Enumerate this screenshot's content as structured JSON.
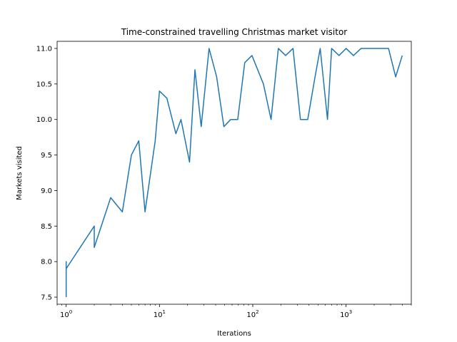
{
  "chart_data": {
    "type": "line",
    "title": "Time-constrained travelling Christmas market visitor",
    "xlabel": "Iterations",
    "ylabel": "Markets visited",
    "xscale": "log",
    "xlim": [
      0.8,
      5000
    ],
    "ylim": [
      7.4,
      11.1
    ],
    "grid": false,
    "line_color": "#1f77b4",
    "x_ticks": [
      {
        "value": 1,
        "base": "10",
        "exp": "0"
      },
      {
        "value": 10,
        "base": "10",
        "exp": "1"
      },
      {
        "value": 100,
        "base": "10",
        "exp": "2"
      },
      {
        "value": 1000,
        "base": "10",
        "exp": "3"
      }
    ],
    "y_ticks": [
      {
        "value": 7.5,
        "label": "7.5"
      },
      {
        "value": 8.0,
        "label": "8.0"
      },
      {
        "value": 8.5,
        "label": "8.5"
      },
      {
        "value": 9.0,
        "label": "9.0"
      },
      {
        "value": 9.5,
        "label": "9.5"
      },
      {
        "value": 10.0,
        "label": "10.0"
      },
      {
        "value": 10.5,
        "label": "10.5"
      },
      {
        "value": 11.0,
        "label": "11.0"
      }
    ],
    "series": [
      {
        "x": [
          1,
          1,
          1,
          1,
          2,
          2,
          3,
          4,
          5,
          6,
          7,
          9,
          10,
          12,
          15,
          17,
          21,
          24,
          28,
          34,
          41,
          49,
          58,
          69,
          82,
          98,
          130,
          157,
          188,
          225,
          270,
          324,
          388,
          465,
          528,
          632,
          700,
          840,
          1000,
          1200,
          1450,
          1700,
          2000,
          2400,
          2850,
          3400,
          4000
        ],
        "y": [
          7.5,
          8.0,
          7.9,
          7.9,
          8.5,
          8.2,
          8.9,
          8.7,
          9.5,
          9.7,
          8.7,
          9.7,
          10.4,
          10.3,
          9.8,
          10.0,
          9.4,
          10.7,
          9.9,
          11.0,
          10.6,
          9.9,
          10.0,
          10.0,
          10.8,
          10.9,
          10.5,
          10.0,
          11.0,
          10.9,
          11.0,
          10.0,
          10.0,
          10.6,
          11.0,
          10.0,
          11.0,
          10.9,
          11.0,
          10.9,
          11.0,
          11.0,
          11.0,
          11.0,
          11.0,
          10.6,
          10.9
        ]
      }
    ]
  }
}
